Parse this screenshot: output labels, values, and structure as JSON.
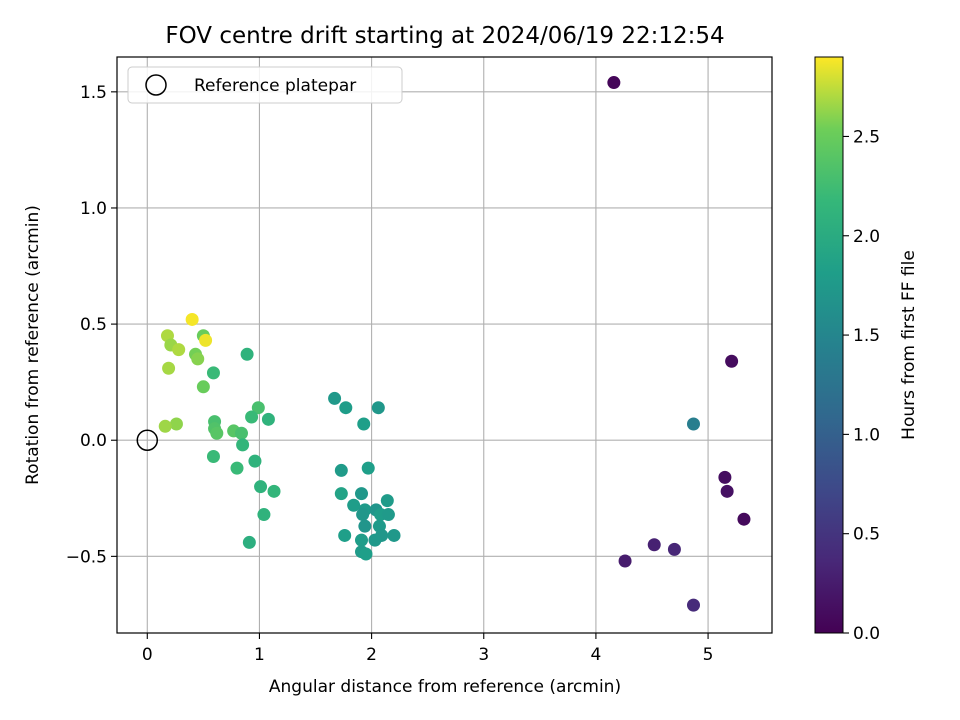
{
  "chart_data": {
    "type": "scatter",
    "title": "FOV centre drift starting at 2024/06/19 22:12:54",
    "xlabel": "Angular distance from reference (arcmin)",
    "ylabel": "Rotation from reference (arcmin)",
    "xlim": [
      -0.27,
      5.57
    ],
    "ylim": [
      -0.83,
      1.65
    ],
    "x_ticks": [
      0,
      1,
      2,
      3,
      4,
      5
    ],
    "x_tick_labels": [
      "0",
      "1",
      "2",
      "3",
      "4",
      "5"
    ],
    "y_ticks": [
      -0.5,
      0.0,
      0.5,
      1.0,
      1.5
    ],
    "y_tick_labels": [
      "−0.5",
      "0.0",
      "0.5",
      "1.0",
      "1.5"
    ],
    "grid": true,
    "legend": {
      "placement": "top-left",
      "entries": [
        {
          "label": "Reference platepar",
          "marker": "open-circle"
        }
      ]
    },
    "reference_point": {
      "x": 0,
      "y": 0
    },
    "colorbar": {
      "label": "Hours from first FF file",
      "colormap": "viridis",
      "range": [
        0.0,
        2.9
      ],
      "ticks": [
        0.0,
        0.5,
        1.0,
        1.5,
        2.0,
        2.5
      ],
      "tick_labels": [
        "0.0",
        "0.5",
        "1.0",
        "1.5",
        "2.0",
        "2.5"
      ]
    },
    "points": [
      {
        "x": 4.16,
        "y": 1.54,
        "c": 0.05
      },
      {
        "x": 5.21,
        "y": 0.34,
        "c": 0.1
      },
      {
        "x": 5.15,
        "y": -0.16,
        "c": 0.12
      },
      {
        "x": 5.17,
        "y": -0.22,
        "c": 0.15
      },
      {
        "x": 5.32,
        "y": -0.34,
        "c": 0.08
      },
      {
        "x": 4.26,
        "y": -0.52,
        "c": 0.25
      },
      {
        "x": 4.52,
        "y": -0.45,
        "c": 0.3
      },
      {
        "x": 4.7,
        "y": -0.47,
        "c": 0.35
      },
      {
        "x": 4.87,
        "y": -0.71,
        "c": 0.4
      },
      {
        "x": 4.87,
        "y": 0.07,
        "c": 1.4
      },
      {
        "x": 1.67,
        "y": 0.18,
        "c": 1.75
      },
      {
        "x": 1.77,
        "y": 0.14,
        "c": 1.8
      },
      {
        "x": 2.06,
        "y": 0.14,
        "c": 1.72
      },
      {
        "x": 1.93,
        "y": 0.07,
        "c": 1.82
      },
      {
        "x": 1.73,
        "y": -0.13,
        "c": 1.78
      },
      {
        "x": 1.97,
        "y": -0.12,
        "c": 1.82
      },
      {
        "x": 1.73,
        "y": -0.23,
        "c": 1.88
      },
      {
        "x": 1.91,
        "y": -0.23,
        "c": 1.74
      },
      {
        "x": 1.84,
        "y": -0.28,
        "c": 1.8
      },
      {
        "x": 1.94,
        "y": -0.3,
        "c": 1.77
      },
      {
        "x": 2.04,
        "y": -0.3,
        "c": 1.7
      },
      {
        "x": 2.14,
        "y": -0.26,
        "c": 1.78
      },
      {
        "x": 1.92,
        "y": -0.32,
        "c": 1.72
      },
      {
        "x": 2.08,
        "y": -0.32,
        "c": 1.8
      },
      {
        "x": 2.15,
        "y": -0.32,
        "c": 1.76
      },
      {
        "x": 1.94,
        "y": -0.37,
        "c": 1.7
      },
      {
        "x": 2.07,
        "y": -0.37,
        "c": 1.76
      },
      {
        "x": 1.76,
        "y": -0.41,
        "c": 1.82
      },
      {
        "x": 2.09,
        "y": -0.41,
        "c": 1.72
      },
      {
        "x": 2.2,
        "y": -0.41,
        "c": 1.74
      },
      {
        "x": 1.91,
        "y": -0.43,
        "c": 1.8
      },
      {
        "x": 2.03,
        "y": -0.43,
        "c": 1.74
      },
      {
        "x": 1.91,
        "y": -0.48,
        "c": 1.78
      },
      {
        "x": 1.95,
        "y": -0.49,
        "c": 1.82
      },
      {
        "x": 0.4,
        "y": 0.52,
        "c": 2.88
      },
      {
        "x": 0.18,
        "y": 0.45,
        "c": 2.7
      },
      {
        "x": 0.5,
        "y": 0.45,
        "c": 2.5
      },
      {
        "x": 0.52,
        "y": 0.43,
        "c": 2.86
      },
      {
        "x": 0.21,
        "y": 0.41,
        "c": 2.65
      },
      {
        "x": 0.28,
        "y": 0.39,
        "c": 2.7
      },
      {
        "x": 0.43,
        "y": 0.37,
        "c": 2.55
      },
      {
        "x": 0.45,
        "y": 0.35,
        "c": 2.6
      },
      {
        "x": 0.89,
        "y": 0.37,
        "c": 2.1
      },
      {
        "x": 0.19,
        "y": 0.31,
        "c": 2.68
      },
      {
        "x": 0.59,
        "y": 0.29,
        "c": 2.2
      },
      {
        "x": 0.5,
        "y": 0.23,
        "c": 2.5
      },
      {
        "x": 0.99,
        "y": 0.14,
        "c": 2.3
      },
      {
        "x": 0.93,
        "y": 0.1,
        "c": 2.2
      },
      {
        "x": 1.08,
        "y": 0.09,
        "c": 2.1
      },
      {
        "x": 0.6,
        "y": 0.08,
        "c": 2.3
      },
      {
        "x": 0.26,
        "y": 0.07,
        "c": 2.62
      },
      {
        "x": 0.16,
        "y": 0.06,
        "c": 2.66
      },
      {
        "x": 0.6,
        "y": 0.05,
        "c": 2.35
      },
      {
        "x": 0.77,
        "y": 0.04,
        "c": 2.4
      },
      {
        "x": 0.62,
        "y": 0.03,
        "c": 2.4
      },
      {
        "x": 0.84,
        "y": 0.03,
        "c": 2.3
      },
      {
        "x": 0.85,
        "y": -0.02,
        "c": 2.15
      },
      {
        "x": 0.59,
        "y": -0.07,
        "c": 2.2
      },
      {
        "x": 0.96,
        "y": -0.09,
        "c": 2.1
      },
      {
        "x": 0.8,
        "y": -0.12,
        "c": 2.2
      },
      {
        "x": 1.01,
        "y": -0.2,
        "c": 2.1
      },
      {
        "x": 1.13,
        "y": -0.22,
        "c": 2.15
      },
      {
        "x": 1.04,
        "y": -0.32,
        "c": 2.1
      },
      {
        "x": 0.91,
        "y": -0.44,
        "c": 2.05
      }
    ]
  }
}
